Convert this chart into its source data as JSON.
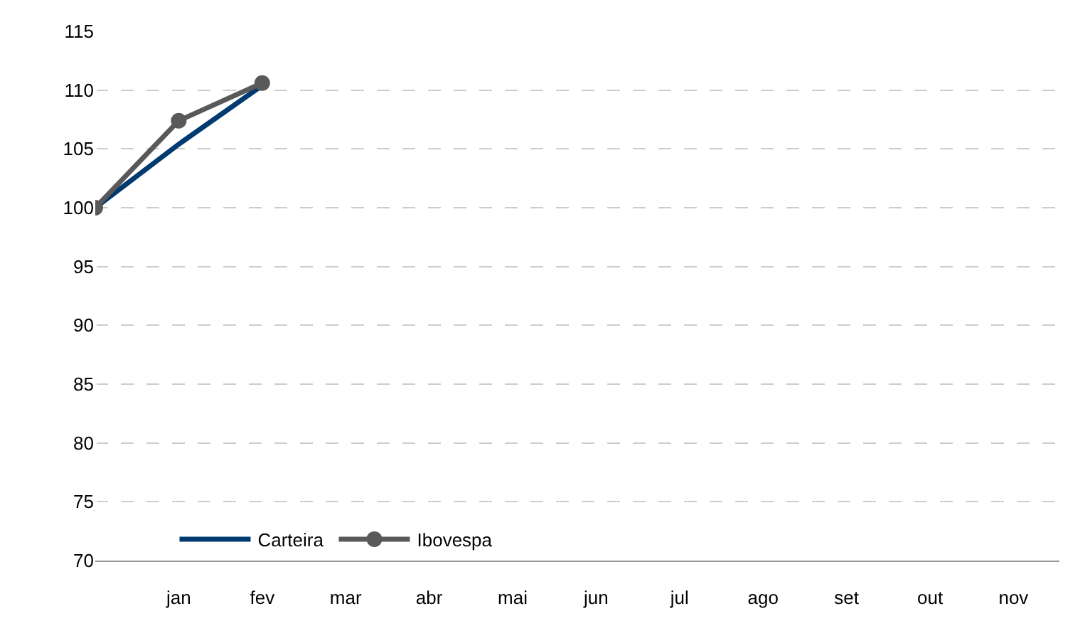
{
  "chart_data": {
    "type": "line",
    "categories": [
      null,
      "jan",
      "fev",
      "mar",
      "abr",
      "mai",
      "jun",
      "jul",
      "ago",
      "set",
      "out",
      "nov"
    ],
    "ylim": [
      70,
      115
    ],
    "yticks": [
      70,
      75,
      80,
      85,
      90,
      95,
      100,
      105,
      110,
      115
    ],
    "grid": "y",
    "legend": "bottom left",
    "series": [
      {
        "name": "Carteira",
        "color": "#003a70",
        "marker": "none",
        "values": [
          100,
          105.4,
          110.4,
          null,
          null,
          null,
          null,
          null,
          null,
          null,
          null,
          null
        ]
      },
      {
        "name": "Ibovespa",
        "color": "#595959",
        "marker": "circle",
        "values": [
          100,
          107.4,
          110.6,
          null,
          null,
          null,
          null,
          null,
          null,
          null,
          null,
          null
        ]
      }
    ]
  }
}
